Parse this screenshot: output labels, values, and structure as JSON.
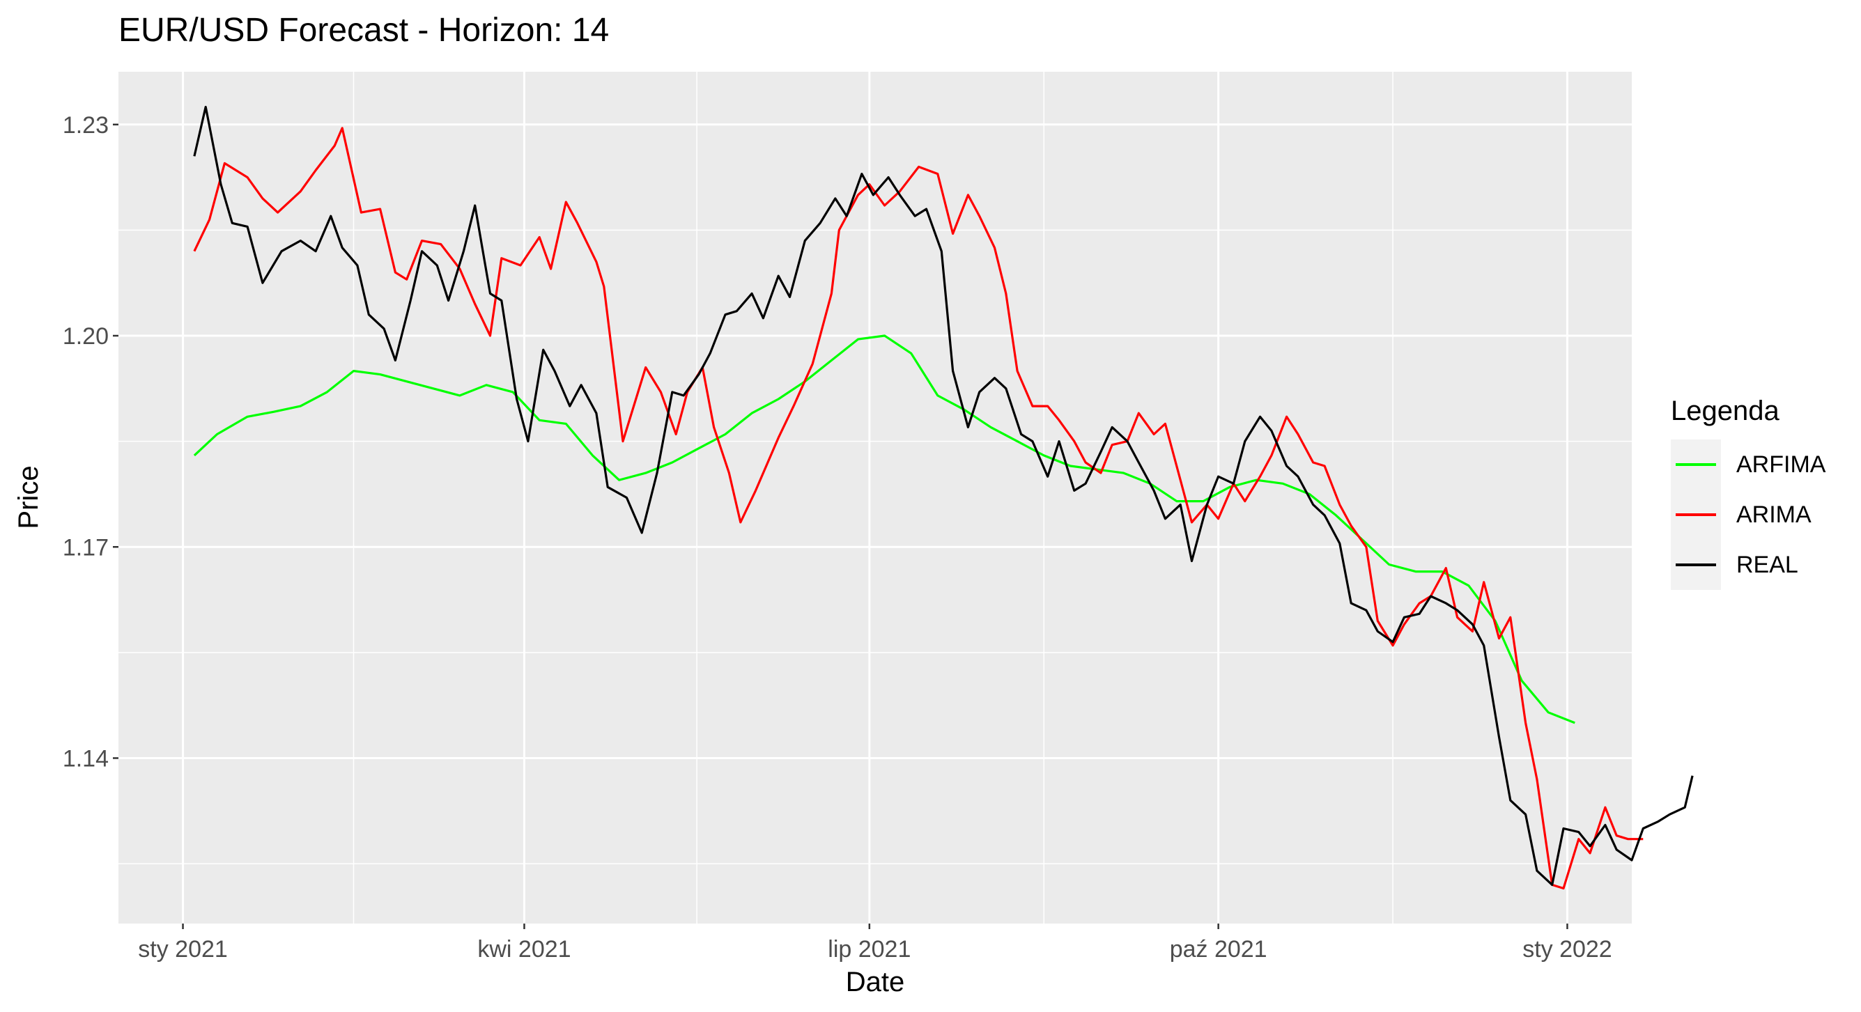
{
  "chart_data": {
    "type": "line",
    "title": "EUR/USD Forecast - Horizon: 14",
    "xlabel": "Date",
    "ylabel": "Price",
    "x_ticks": [
      {
        "label": "sty 2021",
        "date": "2021-01-01"
      },
      {
        "label": "kwi 2021",
        "date": "2021-04-01"
      },
      {
        "label": "lip 2021",
        "date": "2021-07-01"
      },
      {
        "label": "paź 2021",
        "date": "2021-10-01"
      },
      {
        "label": "sty 2022",
        "date": "2022-01-01"
      }
    ],
    "y_ticks": [
      "1.14",
      "1.17",
      "1.20",
      "1.23"
    ],
    "y_tick_values": [
      1.14,
      1.17,
      1.2,
      1.23
    ],
    "xlim": [
      "2020-12-15",
      "2022-01-18"
    ],
    "ylim": [
      1.1165,
      1.2375
    ],
    "grid": true,
    "legend": {
      "title": "Legenda",
      "position": "right"
    },
    "series": [
      {
        "name": "ARFIMA",
        "color": "#00FF00",
        "points": [
          [
            "2021-01-04",
            1.183
          ],
          [
            "2021-01-10",
            1.186
          ],
          [
            "2021-01-18",
            1.1885
          ],
          [
            "2021-01-25",
            1.1892
          ],
          [
            "2021-02-01",
            1.19
          ],
          [
            "2021-02-08",
            1.192
          ],
          [
            "2021-02-15",
            1.195
          ],
          [
            "2021-02-22",
            1.1945
          ],
          [
            "2021-03-01",
            1.1935
          ],
          [
            "2021-03-08",
            1.1925
          ],
          [
            "2021-03-15",
            1.1915
          ],
          [
            "2021-03-22",
            1.193
          ],
          [
            "2021-03-29",
            1.192
          ],
          [
            "2021-04-05",
            1.188
          ],
          [
            "2021-04-12",
            1.1875
          ],
          [
            "2021-04-19",
            1.183
          ],
          [
            "2021-04-26",
            1.1795
          ],
          [
            "2021-05-03",
            1.1805
          ],
          [
            "2021-05-10",
            1.182
          ],
          [
            "2021-05-17",
            1.184
          ],
          [
            "2021-05-24",
            1.186
          ],
          [
            "2021-05-31",
            1.189
          ],
          [
            "2021-06-07",
            1.191
          ],
          [
            "2021-06-14",
            1.1935
          ],
          [
            "2021-06-21",
            1.1965
          ],
          [
            "2021-06-28",
            1.1995
          ],
          [
            "2021-07-05",
            1.2
          ],
          [
            "2021-07-12",
            1.1975
          ],
          [
            "2021-07-19",
            1.1915
          ],
          [
            "2021-07-26",
            1.1895
          ],
          [
            "2021-08-02",
            1.187
          ],
          [
            "2021-08-09",
            1.185
          ],
          [
            "2021-08-16",
            1.183
          ],
          [
            "2021-08-23",
            1.1815
          ],
          [
            "2021-08-30",
            1.181
          ],
          [
            "2021-09-06",
            1.1805
          ],
          [
            "2021-09-13",
            1.179
          ],
          [
            "2021-09-20",
            1.1765
          ],
          [
            "2021-09-27",
            1.1765
          ],
          [
            "2021-10-04",
            1.1785
          ],
          [
            "2021-10-11",
            1.1795
          ],
          [
            "2021-10-18",
            1.179
          ],
          [
            "2021-10-25",
            1.1775
          ],
          [
            "2021-11-01",
            1.1745
          ],
          [
            "2021-11-08",
            1.171
          ],
          [
            "2021-11-15",
            1.1675
          ],
          [
            "2021-11-22",
            1.1665
          ],
          [
            "2021-11-29",
            1.1665
          ],
          [
            "2021-12-06",
            1.1645
          ],
          [
            "2021-12-13",
            1.1595
          ],
          [
            "2021-12-20",
            1.151
          ],
          [
            "2021-12-27",
            1.1465
          ],
          [
            "2022-01-03",
            1.145
          ]
        ]
      },
      {
        "name": "ARIMA",
        "color": "#FF0000",
        "points": [
          [
            "2021-01-04",
            1.212
          ],
          [
            "2021-01-08",
            1.2165
          ],
          [
            "2021-01-12",
            1.2245
          ],
          [
            "2021-01-18",
            1.2225
          ],
          [
            "2021-01-22",
            1.2195
          ],
          [
            "2021-01-26",
            1.2175
          ],
          [
            "2021-02-01",
            1.2205
          ],
          [
            "2021-02-05",
            1.2235
          ],
          [
            "2021-02-10",
            1.227
          ],
          [
            "2021-02-12",
            1.2295
          ],
          [
            "2021-02-17",
            1.2175
          ],
          [
            "2021-02-22",
            1.218
          ],
          [
            "2021-02-26",
            1.209
          ],
          [
            "2021-03-01",
            1.208
          ],
          [
            "2021-03-05",
            1.2135
          ],
          [
            "2021-03-10",
            1.213
          ],
          [
            "2021-03-15",
            1.2095
          ],
          [
            "2021-03-19",
            1.2045
          ],
          [
            "2021-03-23",
            1.2
          ],
          [
            "2021-03-26",
            1.211
          ],
          [
            "2021-03-31",
            1.21
          ],
          [
            "2021-04-05",
            1.214
          ],
          [
            "2021-04-08",
            1.2095
          ],
          [
            "2021-04-12",
            1.219
          ],
          [
            "2021-04-15",
            1.216
          ],
          [
            "2021-04-20",
            1.2105
          ],
          [
            "2021-04-22",
            1.207
          ],
          [
            "2021-04-27",
            1.185
          ],
          [
            "2021-05-03",
            1.1955
          ],
          [
            "2021-05-07",
            1.192
          ],
          [
            "2021-05-11",
            1.186
          ],
          [
            "2021-05-14",
            1.192
          ],
          [
            "2021-05-18",
            1.1955
          ],
          [
            "2021-05-21",
            1.187
          ],
          [
            "2021-05-25",
            1.1805
          ],
          [
            "2021-05-28",
            1.1735
          ],
          [
            "2021-06-01",
            1.178
          ],
          [
            "2021-06-07",
            1.1855
          ],
          [
            "2021-06-11",
            1.19
          ],
          [
            "2021-06-16",
            1.196
          ],
          [
            "2021-06-21",
            1.206
          ],
          [
            "2021-06-23",
            1.215
          ],
          [
            "2021-06-28",
            1.22
          ],
          [
            "2021-07-01",
            1.2215
          ],
          [
            "2021-07-05",
            1.2185
          ],
          [
            "2021-07-09",
            1.2205
          ],
          [
            "2021-07-14",
            1.224
          ],
          [
            "2021-07-19",
            1.223
          ],
          [
            "2021-07-23",
            1.2145
          ],
          [
            "2021-07-27",
            1.22
          ],
          [
            "2021-07-30",
            1.217
          ],
          [
            "2021-08-03",
            1.2125
          ],
          [
            "2021-08-06",
            1.206
          ],
          [
            "2021-08-09",
            1.195
          ],
          [
            "2021-08-13",
            1.19
          ],
          [
            "2021-08-17",
            1.19
          ],
          [
            "2021-08-20",
            1.188
          ],
          [
            "2021-08-24",
            1.185
          ],
          [
            "2021-08-27",
            1.182
          ],
          [
            "2021-08-31",
            1.1805
          ],
          [
            "2021-09-03",
            1.1845
          ],
          [
            "2021-09-07",
            1.185
          ],
          [
            "2021-09-10",
            1.189
          ],
          [
            "2021-09-14",
            1.186
          ],
          [
            "2021-09-17",
            1.1875
          ],
          [
            "2021-09-21",
            1.1795
          ],
          [
            "2021-09-24",
            1.1735
          ],
          [
            "2021-09-28",
            1.176
          ],
          [
            "2021-10-01",
            1.174
          ],
          [
            "2021-10-05",
            1.179
          ],
          [
            "2021-10-08",
            1.1765
          ],
          [
            "2021-10-12",
            1.18
          ],
          [
            "2021-10-15",
            1.183
          ],
          [
            "2021-10-19",
            1.1885
          ],
          [
            "2021-10-22",
            1.186
          ],
          [
            "2021-10-26",
            1.182
          ],
          [
            "2021-10-29",
            1.1815
          ],
          [
            "2021-11-02",
            1.176
          ],
          [
            "2021-11-05",
            1.173
          ],
          [
            "2021-11-09",
            1.17
          ],
          [
            "2021-11-12",
            1.1595
          ],
          [
            "2021-11-16",
            1.156
          ],
          [
            "2021-11-19",
            1.159
          ],
          [
            "2021-11-23",
            1.162
          ],
          [
            "2021-11-26",
            1.163
          ],
          [
            "2021-11-30",
            1.167
          ],
          [
            "2021-12-03",
            1.16
          ],
          [
            "2021-12-07",
            1.158
          ],
          [
            "2021-12-10",
            1.165
          ],
          [
            "2021-12-14",
            1.157
          ],
          [
            "2021-12-17",
            1.16
          ],
          [
            "2021-12-21",
            1.145
          ],
          [
            "2021-12-24",
            1.137
          ],
          [
            "2021-12-28",
            1.122
          ],
          [
            "2021-12-31",
            1.1215
          ],
          [
            "2022-01-04",
            1.1285
          ],
          [
            "2022-01-07",
            1.1265
          ],
          [
            "2022-01-11",
            1.133
          ],
          [
            "2022-01-14",
            1.129
          ],
          [
            "2022-01-17",
            1.1285
          ],
          [
            "2022-01-21",
            1.1285
          ]
        ]
      },
      {
        "name": "REAL",
        "color": "#000000",
        "points": [
          [
            "2021-01-04",
            1.2255
          ],
          [
            "2021-01-07",
            1.2325
          ],
          [
            "2021-01-11",
            1.2215
          ],
          [
            "2021-01-14",
            1.216
          ],
          [
            "2021-01-18",
            1.2155
          ],
          [
            "2021-01-22",
            1.2075
          ],
          [
            "2021-01-27",
            1.212
          ],
          [
            "2021-02-01",
            1.2135
          ],
          [
            "2021-02-05",
            1.212
          ],
          [
            "2021-02-09",
            1.217
          ],
          [
            "2021-02-12",
            1.2125
          ],
          [
            "2021-02-16",
            1.21
          ],
          [
            "2021-02-19",
            1.203
          ],
          [
            "2021-02-23",
            1.201
          ],
          [
            "2021-02-26",
            1.1965
          ],
          [
            "2021-03-02",
            1.205
          ],
          [
            "2021-03-05",
            1.212
          ],
          [
            "2021-03-09",
            1.21
          ],
          [
            "2021-03-12",
            1.205
          ],
          [
            "2021-03-16",
            1.212
          ],
          [
            "2021-03-19",
            1.2185
          ],
          [
            "2021-03-23",
            1.206
          ],
          [
            "2021-03-26",
            1.205
          ],
          [
            "2021-03-30",
            1.191
          ],
          [
            "2021-04-02",
            1.185
          ],
          [
            "2021-04-06",
            1.198
          ],
          [
            "2021-04-09",
            1.195
          ],
          [
            "2021-04-13",
            1.19
          ],
          [
            "2021-04-16",
            1.193
          ],
          [
            "2021-04-20",
            1.189
          ],
          [
            "2021-04-23",
            1.1785
          ],
          [
            "2021-04-28",
            1.177
          ],
          [
            "2021-05-02",
            1.172
          ],
          [
            "2021-05-06",
            1.1805
          ],
          [
            "2021-05-10",
            1.192
          ],
          [
            "2021-05-13",
            1.1915
          ],
          [
            "2021-05-17",
            1.1945
          ],
          [
            "2021-05-20",
            1.1975
          ],
          [
            "2021-05-24",
            1.203
          ],
          [
            "2021-05-27",
            1.2035
          ],
          [
            "2021-05-31",
            1.206
          ],
          [
            "2021-06-03",
            1.2025
          ],
          [
            "2021-06-07",
            1.2085
          ],
          [
            "2021-06-10",
            1.2055
          ],
          [
            "2021-06-14",
            1.2135
          ],
          [
            "2021-06-18",
            1.216
          ],
          [
            "2021-06-22",
            1.2195
          ],
          [
            "2021-06-25",
            1.217
          ],
          [
            "2021-06-29",
            1.223
          ],
          [
            "2021-07-02",
            1.22
          ],
          [
            "2021-07-06",
            1.2225
          ],
          [
            "2021-07-09",
            1.22
          ],
          [
            "2021-07-13",
            1.217
          ],
          [
            "2021-07-16",
            1.218
          ],
          [
            "2021-07-20",
            1.212
          ],
          [
            "2021-07-23",
            1.195
          ],
          [
            "2021-07-27",
            1.187
          ],
          [
            "2021-07-30",
            1.192
          ],
          [
            "2021-08-03",
            1.194
          ],
          [
            "2021-08-06",
            1.1925
          ],
          [
            "2021-08-10",
            1.186
          ],
          [
            "2021-08-13",
            1.185
          ],
          [
            "2021-08-17",
            1.18
          ],
          [
            "2021-08-20",
            1.185
          ],
          [
            "2021-08-24",
            1.178
          ],
          [
            "2021-08-27",
            1.179
          ],
          [
            "2021-08-31",
            1.1835
          ],
          [
            "2021-09-03",
            1.187
          ],
          [
            "2021-09-07",
            1.185
          ],
          [
            "2021-09-10",
            1.182
          ],
          [
            "2021-09-14",
            1.178
          ],
          [
            "2021-09-17",
            1.174
          ],
          [
            "2021-09-21",
            1.176
          ],
          [
            "2021-09-24",
            1.168
          ],
          [
            "2021-09-28",
            1.176
          ],
          [
            "2021-10-01",
            1.18
          ],
          [
            "2021-10-05",
            1.179
          ],
          [
            "2021-10-08",
            1.185
          ],
          [
            "2021-10-12",
            1.1885
          ],
          [
            "2021-10-15",
            1.1865
          ],
          [
            "2021-10-19",
            1.1815
          ],
          [
            "2021-10-22",
            1.18
          ],
          [
            "2021-10-26",
            1.176
          ],
          [
            "2021-10-29",
            1.1745
          ],
          [
            "2021-11-02",
            1.1705
          ],
          [
            "2021-11-05",
            1.162
          ],
          [
            "2021-11-09",
            1.161
          ],
          [
            "2021-11-12",
            1.158
          ],
          [
            "2021-11-16",
            1.1565
          ],
          [
            "2021-11-19",
            1.16
          ],
          [
            "2021-11-23",
            1.1605
          ],
          [
            "2021-11-26",
            1.163
          ],
          [
            "2021-11-30",
            1.162
          ],
          [
            "2021-12-03",
            1.161
          ],
          [
            "2021-12-07",
            1.159
          ],
          [
            "2021-12-10",
            1.156
          ],
          [
            "2021-12-14",
            1.143
          ],
          [
            "2021-12-17",
            1.134
          ],
          [
            "2021-12-21",
            1.132
          ],
          [
            "2021-12-24",
            1.124
          ],
          [
            "2021-12-28",
            1.122
          ],
          [
            "2021-12-31",
            1.13
          ],
          [
            "2022-01-04",
            1.1295
          ],
          [
            "2022-01-07",
            1.1275
          ],
          [
            "2022-01-11",
            1.1305
          ],
          [
            "2022-01-14",
            1.127
          ],
          [
            "2022-01-18",
            1.1255
          ],
          [
            "2022-01-21",
            1.13
          ],
          [
            "2022-01-25",
            1.131
          ],
          [
            "2022-01-28",
            1.132
          ],
          [
            "2022-02-01",
            1.133
          ],
          [
            "2022-02-03",
            1.1375
          ]
        ]
      }
    ]
  }
}
